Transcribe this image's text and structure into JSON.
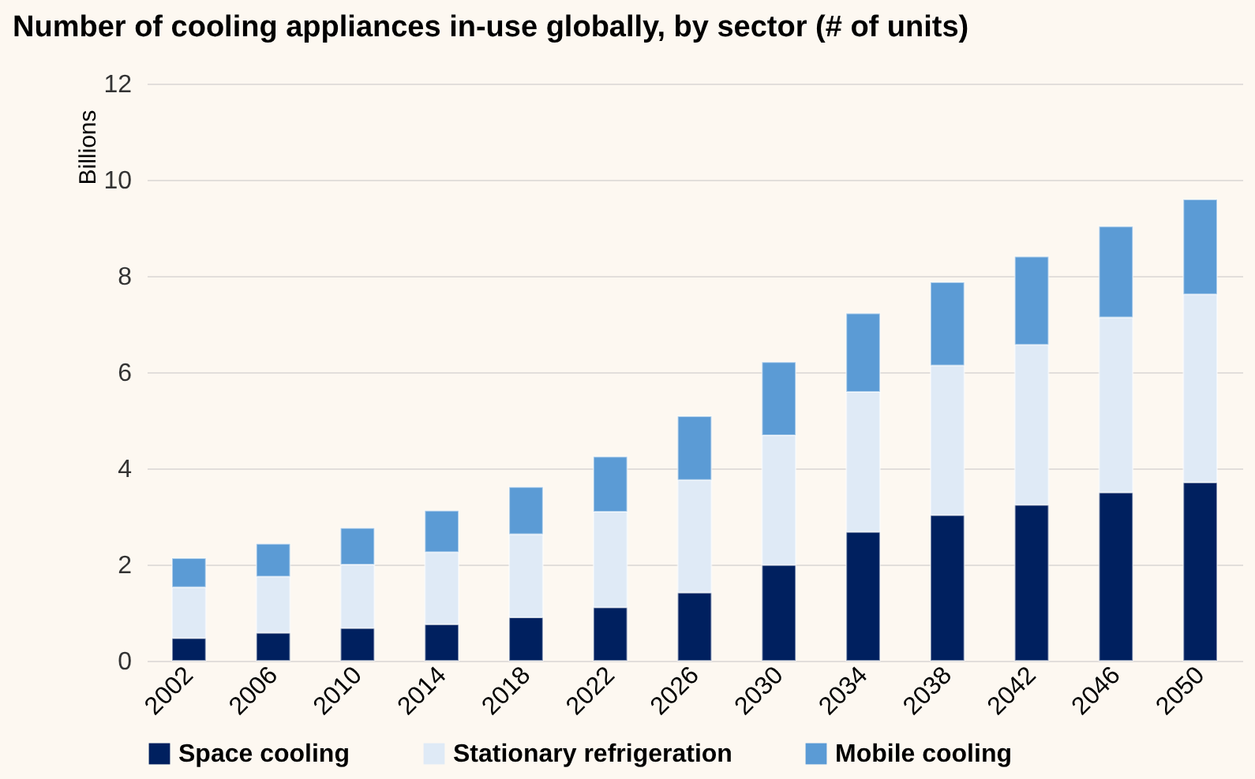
{
  "chart_data": {
    "type": "bar",
    "title": "Number of cooling appliances in-use globally, by sector (# of units)",
    "ylabel": "Billions",
    "categories": [
      "2002",
      "2006",
      "2010",
      "2014",
      "2018",
      "2022",
      "2026",
      "2030",
      "2034",
      "2038",
      "2042",
      "2046",
      "2050"
    ],
    "stacked": true,
    "ylim": [
      0,
      12
    ],
    "yticks": [
      0,
      2,
      4,
      6,
      8,
      10,
      12
    ],
    "grid": "y",
    "legend": "bottom",
    "series": [
      {
        "name": "Space cooling",
        "color": "#00205f",
        "values": [
          0.47,
          0.58,
          0.68,
          0.76,
          0.9,
          1.11,
          1.42,
          1.99,
          2.68,
          3.03,
          3.24,
          3.5,
          3.71
        ]
      },
      {
        "name": "Stationary refrigeration",
        "color": "#dfeaf6",
        "values": [
          1.06,
          1.17,
          1.32,
          1.5,
          1.73,
          1.99,
          2.34,
          2.7,
          2.91,
          3.11,
          3.33,
          3.64,
          3.91
        ]
      },
      {
        "name": "Mobile cooling",
        "color": "#5b9bd5",
        "values": [
          0.6,
          0.68,
          0.76,
          0.86,
          0.98,
          1.14,
          1.32,
          1.52,
          1.63,
          1.73,
          1.83,
          1.89,
          1.97
        ]
      }
    ]
  }
}
